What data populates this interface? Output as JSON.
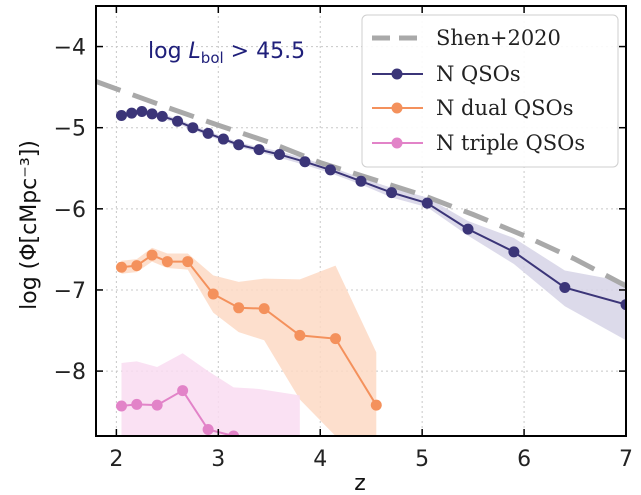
{
  "chart_data": {
    "type": "line",
    "xlabel": "z",
    "ylabel": "log (Φ[cMpc⁻³])",
    "xlim": [
      1.8,
      7.0
    ],
    "ylim": [
      -8.8,
      -3.5
    ],
    "xticks": [
      2,
      3,
      4,
      5,
      6,
      7
    ],
    "yticks": [
      -8,
      -7,
      -6,
      -5,
      -4
    ],
    "xtick_labels": [
      "2",
      "3",
      "4",
      "5",
      "6",
      "7"
    ],
    "ytick_labels": [
      "−8",
      "−7",
      "−6",
      "−5",
      "−4"
    ],
    "grid": true,
    "legend_position": "top-right",
    "annotation": {
      "prefix": "log ",
      "symbol": "L",
      "subscript": "bol",
      "suffix": " > 45.5",
      "color": "#1f1f7a"
    },
    "series": [
      {
        "name": "Shen+2020",
        "style": "dashed",
        "color": "#a9a9a9",
        "x": [
          1.8,
          2.5,
          3.0,
          3.5,
          4.0,
          4.5,
          5.0,
          5.5,
          6.0,
          6.5,
          7.0
        ],
        "y": [
          -4.43,
          -4.75,
          -4.97,
          -5.18,
          -5.43,
          -5.63,
          -5.83,
          -6.07,
          -6.33,
          -6.62,
          -6.95
        ]
      },
      {
        "name": "N QSOs",
        "style": "line-marker",
        "color": "#3b3578",
        "x": [
          2.05,
          2.15,
          2.25,
          2.35,
          2.45,
          2.6,
          2.75,
          2.9,
          3.05,
          3.2,
          3.4,
          3.6,
          3.85,
          4.1,
          4.4,
          4.7,
          5.05,
          5.45,
          5.9,
          6.4,
          7.0
        ],
        "y": [
          -4.85,
          -4.82,
          -4.8,
          -4.83,
          -4.86,
          -4.92,
          -5.0,
          -5.07,
          -5.14,
          -5.21,
          -5.27,
          -5.33,
          -5.42,
          -5.52,
          -5.66,
          -5.8,
          -5.93,
          -6.25,
          -6.53,
          -6.97,
          -7.18
        ],
        "band_lower": [
          -4.88,
          -4.85,
          -4.83,
          -4.86,
          -4.89,
          -4.95,
          -5.03,
          -5.1,
          -5.17,
          -5.24,
          -5.3,
          -5.37,
          -5.46,
          -5.56,
          -5.7,
          -5.86,
          -5.98,
          -6.33,
          -6.68,
          -7.2,
          -7.62
        ],
        "band_upper": [
          -4.82,
          -4.79,
          -4.77,
          -4.8,
          -4.83,
          -4.89,
          -4.97,
          -5.04,
          -5.11,
          -5.18,
          -5.24,
          -5.29,
          -5.38,
          -5.48,
          -5.62,
          -5.74,
          -5.86,
          -6.15,
          -6.36,
          -6.76,
          -6.9
        ]
      },
      {
        "name": "N dual QSOs",
        "style": "line-marker",
        "color": "#f4915c",
        "band_color": "#fdd9c4",
        "x": [
          2.05,
          2.2,
          2.35,
          2.5,
          2.7,
          2.95,
          3.2,
          3.45,
          3.8,
          4.15,
          4.55
        ],
        "y": [
          -6.72,
          -6.7,
          -6.57,
          -6.65,
          -6.65,
          -7.05,
          -7.22,
          -7.23,
          -7.56,
          -7.6,
          -8.42
        ],
        "band_lower": [
          -6.8,
          -6.78,
          -6.65,
          -6.73,
          -6.75,
          -7.28,
          -7.52,
          -7.62,
          -8.35,
          -8.8,
          -8.8
        ],
        "band_upper": [
          -6.64,
          -6.62,
          -6.48,
          -6.55,
          -6.55,
          -6.82,
          -6.9,
          -6.86,
          -6.87,
          -6.7,
          -7.77
        ]
      },
      {
        "name": "N triple QSOs",
        "style": "line-marker",
        "color": "#e283c8",
        "band_color": "#f9dcf1",
        "x": [
          2.05,
          2.2,
          2.4,
          2.65,
          2.9,
          3.15
        ],
        "y": [
          -8.43,
          -8.41,
          -8.42,
          -8.24,
          -8.72,
          -8.8
        ],
        "band_lower": [
          -8.8,
          -8.8,
          -8.8,
          -8.8,
          -8.8,
          -8.8
        ],
        "band_upper": [
          -7.9,
          -7.88,
          -7.95,
          -7.78,
          -8.0,
          -8.2
        ],
        "band_x": [
          2.05,
          2.2,
          2.4,
          2.65,
          2.9,
          3.15,
          3.4,
          3.8
        ],
        "band_x_upper": [
          -7.9,
          -7.88,
          -7.95,
          -7.78,
          -8.0,
          -8.2,
          -8.22,
          -8.3
        ],
        "band_x_lower": [
          -8.8,
          -8.8,
          -8.8,
          -8.8,
          -8.8,
          -8.8,
          -8.8,
          -8.8
        ]
      }
    ]
  }
}
